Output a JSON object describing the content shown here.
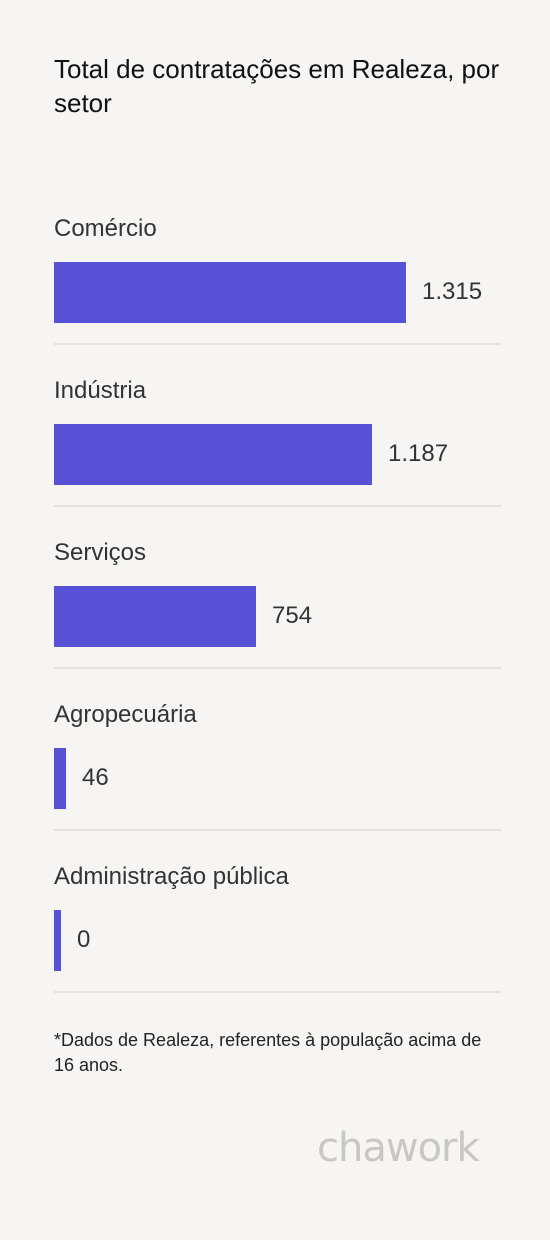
{
  "title": "Total de contratações em Realeza, por setor",
  "footnote": "*Dados de Realeza, referentes à população acima de 16 anos.",
  "brand": "chawork",
  "colors": {
    "bar": "#5751d6",
    "background": "#f6f5f3"
  },
  "chart_data": {
    "type": "bar",
    "orientation": "horizontal",
    "categories": [
      "Comércio",
      "Indústria",
      "Serviços",
      "Agropecuária",
      "Administração pública"
    ],
    "values": [
      1315,
      1187,
      754,
      46,
      0
    ],
    "value_labels": [
      "1.315",
      "1.187",
      "754",
      "46",
      "0"
    ],
    "grid": false,
    "legend": "none"
  }
}
